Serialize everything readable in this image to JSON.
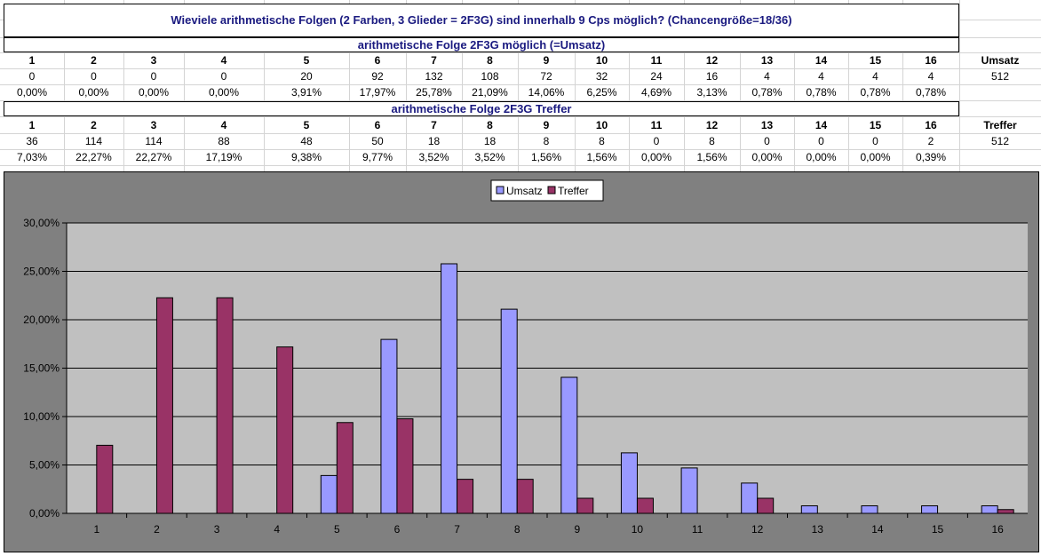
{
  "title": "Wieviele arithmetische Folgen (2 Farben, 3 Glieder = 2F3G) sind innerhalb 9 Cps möglich? (Chancengröße=18/36)",
  "section1_title": "arithmetische Folge 2F3G möglich (=Umsatz)",
  "section2_title": "arithmetische Folge 2F3G Treffer",
  "columns": [
    "1",
    "2",
    "3",
    "4",
    "5",
    "6",
    "7",
    "8",
    "9",
    "10",
    "11",
    "12",
    "13",
    "14",
    "15",
    "16"
  ],
  "umsatz_label": "Umsatz",
  "treffer_label": "Treffer",
  "umsatz_counts": [
    "0",
    "0",
    "0",
    "0",
    "20",
    "92",
    "132",
    "108",
    "72",
    "32",
    "24",
    "16",
    "4",
    "4",
    "4",
    "4"
  ],
  "umsatz_total": "512",
  "umsatz_pct": [
    "0,00%",
    "0,00%",
    "0,00%",
    "0,00%",
    "3,91%",
    "17,97%",
    "25,78%",
    "21,09%",
    "14,06%",
    "6,25%",
    "4,69%",
    "3,13%",
    "0,78%",
    "0,78%",
    "0,78%",
    "0,78%"
  ],
  "treffer_counts": [
    "36",
    "114",
    "114",
    "88",
    "48",
    "50",
    "18",
    "18",
    "8",
    "8",
    "0",
    "8",
    "0",
    "0",
    "0",
    "2"
  ],
  "treffer_total": "512",
  "treffer_pct": [
    "7,03%",
    "22,27%",
    "22,27%",
    "17,19%",
    "9,38%",
    "9,77%",
    "3,52%",
    "3,52%",
    "1,56%",
    "1,56%",
    "0,00%",
    "1,56%",
    "0,00%",
    "0,00%",
    "0,00%",
    "0,39%"
  ],
  "chart_data": {
    "type": "bar",
    "categories": [
      "1",
      "2",
      "3",
      "4",
      "5",
      "6",
      "7",
      "8",
      "9",
      "10",
      "11",
      "12",
      "13",
      "14",
      "15",
      "16"
    ],
    "series": [
      {
        "name": "Umsatz",
        "color": "#9999ff",
        "values": [
          0,
          0,
          0,
          0,
          3.91,
          17.97,
          25.78,
          21.09,
          14.06,
          6.25,
          4.69,
          3.13,
          0.78,
          0.78,
          0.78,
          0.78
        ]
      },
      {
        "name": "Treffer",
        "color": "#993366",
        "values": [
          7.03,
          22.27,
          22.27,
          17.19,
          9.38,
          9.77,
          3.52,
          3.52,
          1.56,
          1.56,
          0,
          1.56,
          0,
          0,
          0,
          0.39
        ]
      }
    ],
    "ylim": [
      0,
      30
    ],
    "yticks": [
      "0,00%",
      "5,00%",
      "10,00%",
      "15,00%",
      "20,00%",
      "25,00%",
      "30,00%"
    ],
    "legend": "top-center",
    "grid": true,
    "plot_background": "#c0c0c0",
    "chart_background": "#808080"
  }
}
